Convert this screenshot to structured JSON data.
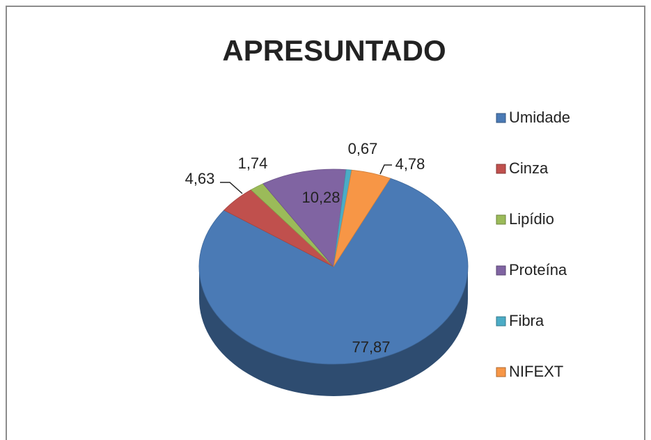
{
  "chart_data": {
    "type": "pie3d",
    "title": "APRESUNTADO",
    "categories": [
      "Umidade",
      "Cinza",
      "Lipídio",
      "Proteína",
      "Fibra",
      "NIFEXT"
    ],
    "values": [
      77.87,
      4.63,
      1.74,
      10.28,
      0.67,
      4.78
    ],
    "value_labels": [
      "77,87",
      "4,63",
      "1,74",
      "10,28",
      "0,67",
      "4,78"
    ],
    "colors": [
      "#4a7ab5",
      "#c0504d",
      "#9bbb59",
      "#8064a2",
      "#4bacc6",
      "#f79646"
    ],
    "legend": "right"
  }
}
